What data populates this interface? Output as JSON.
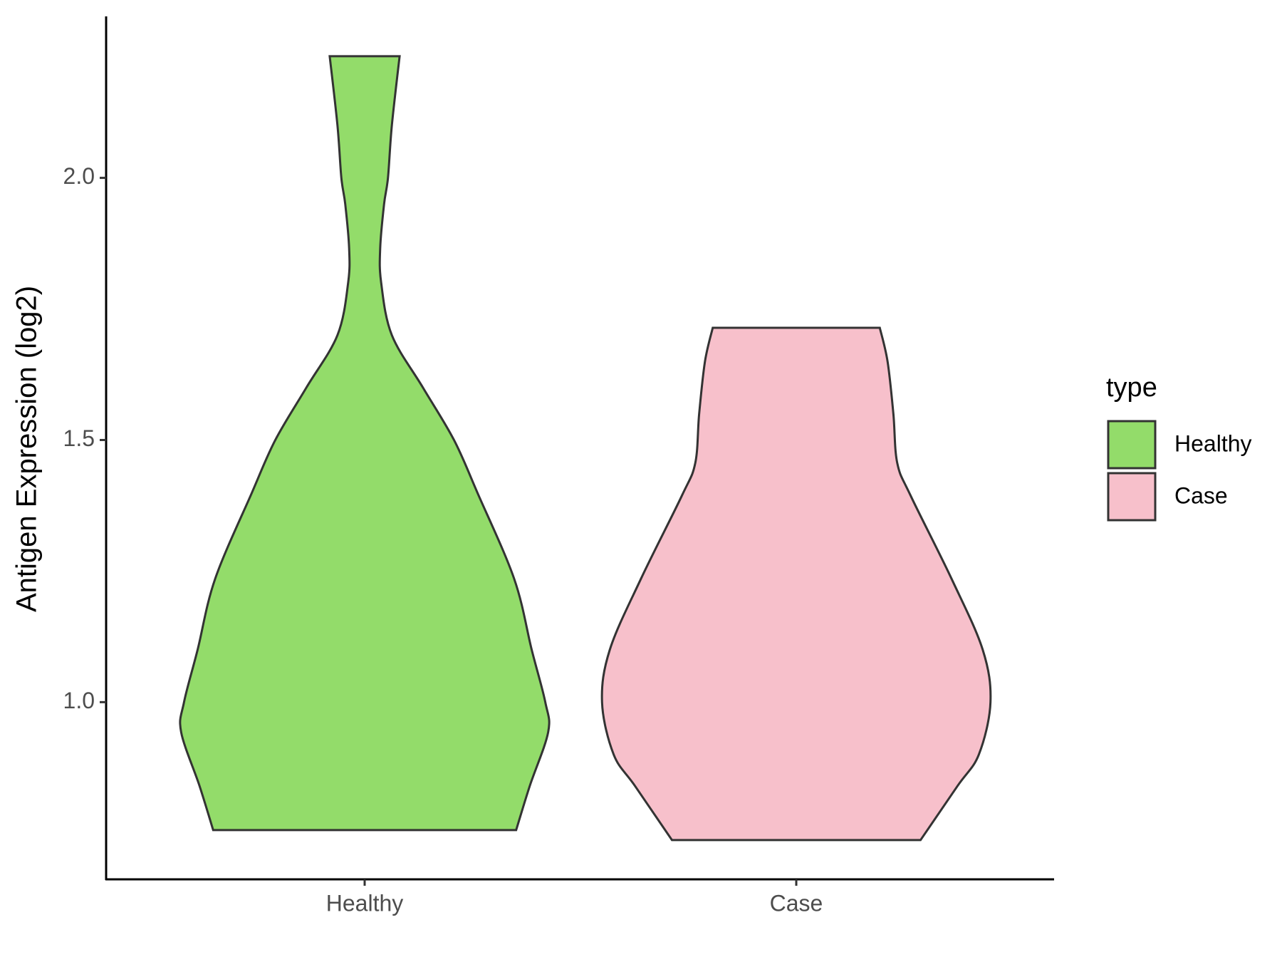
{
  "chart_data": {
    "type": "violin",
    "y_label": "Antigen Expression (log2)",
    "categories": [
      "Healthy",
      "Case"
    ],
    "legend_title": "type",
    "legend_position": "right",
    "ylim": [
      0.662,
      2.308
    ],
    "yticks": [
      {
        "value": 1,
        "label": "1.0"
      },
      1.5,
      {
        "value": 2,
        "label": "2.0"
      }
    ],
    "series": [
      {
        "name": "Healthy",
        "color": "#93dc6a",
        "y": [
          0.756,
          0.84,
          0.943,
          1.0,
          1.1,
          1.235,
          1.4,
          1.5,
          1.6,
          1.7,
          1.8,
          1.866,
          1.95,
          2.0,
          2.1,
          2.232
        ],
        "density": [
          0.78,
          0.85,
          0.945,
          0.93,
          0.86,
          0.77,
          0.58,
          0.46,
          0.3,
          0.14,
          0.085,
          0.08,
          0.1,
          0.12,
          0.14,
          0.18
        ]
      },
      {
        "name": "Case",
        "color": "#f7c0cb",
        "y": [
          0.737,
          0.84,
          0.9,
          1.0,
          1.1,
          1.235,
          1.393,
          1.456,
          1.55,
          1.65,
          1.714
        ],
        "density": [
          0.64,
          0.83,
          0.94,
          1.0,
          0.96,
          0.8,
          0.59,
          0.52,
          0.5,
          0.47,
          0.43
        ]
      }
    ]
  }
}
